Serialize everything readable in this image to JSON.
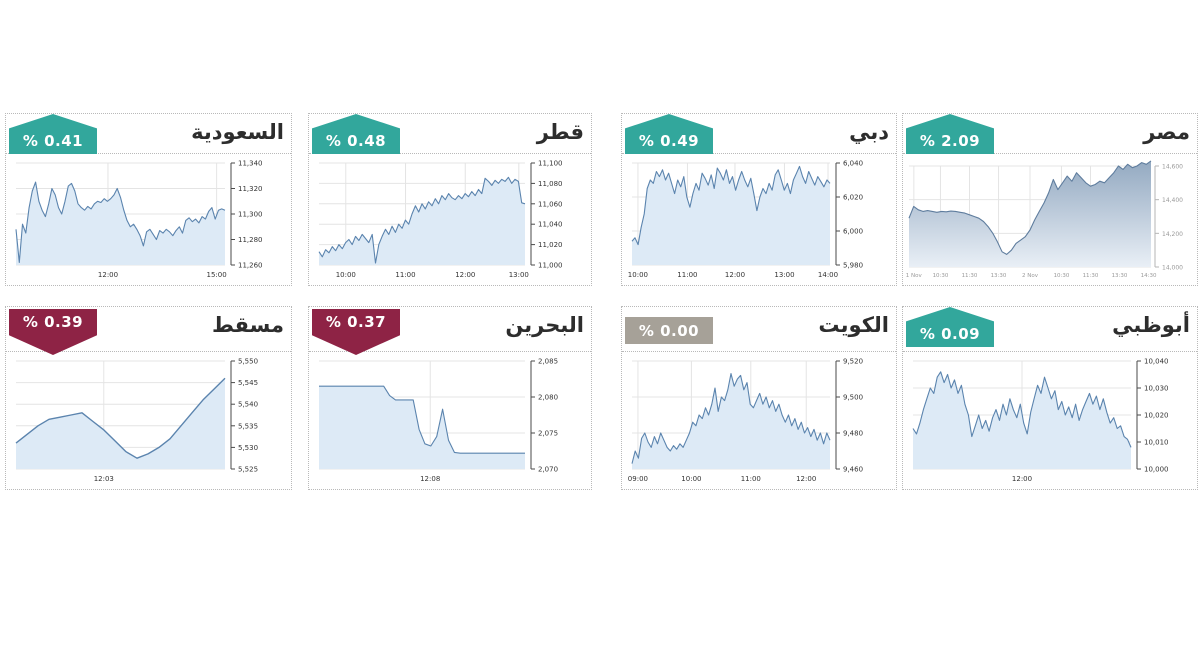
{
  "page": {
    "background": "#ffffff",
    "description_direction": "rtl"
  },
  "colors": {
    "badge": {
      "up": "#32a79c",
      "down": "#8e2345",
      "flat": "#a6a198"
    },
    "badge_text": "#ffffff",
    "title_text": "#2d2d2d",
    "line": "#5b84ae",
    "fill": "#ddeaf6",
    "line_gradient": "#5f7d9e",
    "fill_gradient_top": "#93a9c1",
    "fill_gradient_bottom": "#e9eff6",
    "grid": "#e4e4e4",
    "axis": "#4a4a4a",
    "tick_text": "#333333",
    "tick_text_gray": "#9a9a9a",
    "panel_border": "#b9b9b9"
  },
  "chart_data": [
    {
      "type": "area",
      "title": "السعودية",
      "change": "% 0.41",
      "direction": "up",
      "ylim": [
        11260,
        11340
      ],
      "y_tick_labels": [
        "11,340",
        "11,320",
        "11,300",
        "11,280",
        "11,260"
      ],
      "x_ticks": [
        {
          "label": "12:00",
          "pos": 0.44
        },
        {
          "label": "15:00",
          "pos": 0.96
        }
      ],
      "values": [
        11288,
        11262,
        11292,
        11285,
        11305,
        11318,
        11325,
        11310,
        11303,
        11298,
        11308,
        11320,
        11315,
        11305,
        11300,
        11310,
        11322,
        11324,
        11318,
        11308,
        11305,
        11303,
        11306,
        11304,
        11308,
        11310,
        11309,
        11312,
        11310,
        11312,
        11315,
        11320,
        11313,
        11303,
        11295,
        11290,
        11292,
        11288,
        11283,
        11275,
        11286,
        11288,
        11284,
        11280,
        11287,
        11285,
        11288,
        11286,
        11283,
        11287,
        11290,
        11285,
        11295,
        11297,
        11294,
        11296,
        11293,
        11298,
        11296,
        11302,
        11305,
        11296,
        11303,
        11304,
        11303
      ]
    },
    {
      "type": "area",
      "title": "قطر",
      "change": "% 0.48",
      "direction": "up",
      "ylim": [
        11000,
        11100
      ],
      "y_tick_labels": [
        "11,100",
        "11,080",
        "11,060",
        "11,040",
        "11,020",
        "11,000"
      ],
      "x_ticks": [
        {
          "label": "10:00",
          "pos": 0.13
        },
        {
          "label": "11:00",
          "pos": 0.42
        },
        {
          "label": "12:00",
          "pos": 0.71
        },
        {
          "label": "13:00",
          "pos": 0.97
        }
      ],
      "values": [
        11013,
        11008,
        11015,
        11012,
        11018,
        11014,
        11020,
        11016,
        11022,
        11025,
        11020,
        11028,
        11024,
        11030,
        11026,
        11022,
        11030,
        11002,
        11020,
        11028,
        11035,
        11030,
        11038,
        11032,
        11040,
        11036,
        11044,
        11040,
        11050,
        11058,
        11052,
        11060,
        11055,
        11062,
        11058,
        11065,
        11060,
        11068,
        11064,
        11070,
        11066,
        11064,
        11068,
        11065,
        11070,
        11067,
        11072,
        11068,
        11074,
        11070,
        11085,
        11082,
        11078,
        11083,
        11080,
        11084,
        11082,
        11086,
        11080,
        11084,
        11082,
        11061,
        11060
      ]
    },
    {
      "type": "area",
      "title": "دبي",
      "change": "% 0.49",
      "direction": "up",
      "ylim": [
        5980,
        6040
      ],
      "y_tick_labels": [
        "6,040",
        "6,020",
        "6,000",
        "5,980"
      ],
      "x_ticks": [
        {
          "label": "10:00",
          "pos": 0.03
        },
        {
          "label": "11:00",
          "pos": 0.28
        },
        {
          "label": "12:00",
          "pos": 0.52
        },
        {
          "label": "13:00",
          "pos": 0.77
        },
        {
          "label": "14:00",
          "pos": 0.99
        }
      ],
      "values": [
        5994,
        5996,
        5992,
        6002,
        6010,
        6025,
        6030,
        6028,
        6035,
        6032,
        6036,
        6030,
        6034,
        6028,
        6022,
        6030,
        6026,
        6032,
        6020,
        6014,
        6022,
        6028,
        6024,
        6034,
        6031,
        6027,
        6033,
        6025,
        6037,
        6034,
        6030,
        6036,
        6028,
        6032,
        6024,
        6030,
        6035,
        6030,
        6026,
        6031,
        6022,
        6012,
        6020,
        6025,
        6022,
        6028,
        6024,
        6033,
        6036,
        6030,
        6024,
        6028,
        6022,
        6030,
        6034,
        6038,
        6032,
        6028,
        6035,
        6031,
        6027,
        6032,
        6029,
        6026,
        6030,
        6028
      ]
    },
    {
      "type": "area",
      "title": "مصر",
      "change": "% 2.09",
      "direction": "up",
      "variant": "gradient",
      "ylim": [
        14000,
        14600
      ],
      "y_tick_labels": [
        "14,600",
        "14,400",
        "14,200",
        "14,000"
      ],
      "x_ticks": [
        {
          "label": "1 Nov",
          "pos": 0.02
        },
        {
          "label": "10:30",
          "pos": 0.13
        },
        {
          "label": "11:30",
          "pos": 0.25
        },
        {
          "label": "13:30",
          "pos": 0.37
        },
        {
          "label": "2 Nov",
          "pos": 0.5
        },
        {
          "label": "10:30",
          "pos": 0.63
        },
        {
          "label": "11:30",
          "pos": 0.75
        },
        {
          "label": "13:30",
          "pos": 0.87
        },
        {
          "label": "14:30",
          "pos": 0.99
        }
      ],
      "values": [
        14290,
        14360,
        14340,
        14330,
        14335,
        14330,
        14325,
        14330,
        14328,
        14332,
        14330,
        14325,
        14320,
        14310,
        14300,
        14290,
        14270,
        14240,
        14200,
        14150,
        14090,
        14075,
        14100,
        14140,
        14160,
        14180,
        14220,
        14280,
        14330,
        14380,
        14440,
        14520,
        14460,
        14500,
        14540,
        14510,
        14560,
        14530,
        14500,
        14480,
        14490,
        14510,
        14500,
        14530,
        14560,
        14600,
        14580,
        14610,
        14590,
        14600,
        14620,
        14610,
        14630
      ]
    },
    {
      "type": "area",
      "title": "مسقط",
      "change": "% 0.39",
      "direction": "down",
      "ylim": [
        5525,
        5550
      ],
      "y_tick_labels": [
        "5,550",
        "5,545",
        "5,540",
        "5,535",
        "5,530",
        "5,525"
      ],
      "x_ticks": [
        {
          "label": "12:03",
          "pos": 0.42
        }
      ],
      "values": [
        5531,
        5533,
        5535,
        5536.5,
        5537,
        5537.5,
        5538,
        5536,
        5534,
        5531.5,
        5529,
        5527.5,
        5528.5,
        5530,
        5532,
        5535,
        5538,
        5541,
        5543.5,
        5546
      ]
    },
    {
      "type": "area",
      "title": "البحرين",
      "change": "% 0.37",
      "direction": "down",
      "ylim": [
        2070,
        2085
      ],
      "y_tick_labels": [
        "2,085",
        "2,080",
        "2,075",
        "2,070"
      ],
      "x_ticks": [
        {
          "label": "12:08",
          "pos": 0.54
        }
      ],
      "values": [
        2081.5,
        2081.5,
        2081.5,
        2081.5,
        2081.5,
        2081.5,
        2081.5,
        2081.5,
        2081.5,
        2081.5,
        2081.5,
        2081.5,
        2080.2,
        2079.6,
        2079.6,
        2079.6,
        2079.6,
        2075.5,
        2073.5,
        2073.2,
        2074.5,
        2078.3,
        2074,
        2072.3,
        2072.2,
        2072.2,
        2072.2,
        2072.2,
        2072.2,
        2072.2,
        2072.2,
        2072.2,
        2072.2,
        2072.2,
        2072.2,
        2072.2
      ]
    },
    {
      "type": "area",
      "title": "الكويت",
      "change": "% 0.00",
      "direction": "flat",
      "ylim": [
        9460,
        9520
      ],
      "y_tick_labels": [
        "9,520",
        "9,500",
        "9,480",
        "9,460"
      ],
      "x_ticks": [
        {
          "label": "09:00",
          "pos": 0.03
        },
        {
          "label": "10:00",
          "pos": 0.3
        },
        {
          "label": "11:00",
          "pos": 0.6
        },
        {
          "label": "12:00",
          "pos": 0.88
        }
      ],
      "values": [
        9463,
        9470,
        9466,
        9477,
        9480,
        9475,
        9472,
        9478,
        9474,
        9480,
        9476,
        9472,
        9470,
        9473,
        9471,
        9474,
        9472,
        9476,
        9480,
        9486,
        9484,
        9490,
        9488,
        9494,
        9490,
        9496,
        9505,
        9492,
        9500,
        9498,
        9504,
        9513,
        9506,
        9510,
        9512,
        9504,
        9508,
        9496,
        9494,
        9498,
        9502,
        9496,
        9500,
        9494,
        9498,
        9492,
        9496,
        9490,
        9486,
        9490,
        9484,
        9488,
        9482,
        9486,
        9480,
        9483,
        9478,
        9482,
        9476,
        9480,
        9474,
        9480,
        9476
      ]
    },
    {
      "type": "area",
      "title": "أبوظبي",
      "change": "% 0.09",
      "direction": "up",
      "ylim": [
        10000,
        10040
      ],
      "y_tick_labels": [
        "10,040",
        "10,030",
        "10,020",
        "10,010",
        "10,000"
      ],
      "x_ticks": [
        {
          "label": "12:00",
          "pos": 0.5
        }
      ],
      "values": [
        10015,
        10013,
        10017,
        10022,
        10026,
        10030,
        10028,
        10034,
        10036,
        10032,
        10035,
        10030,
        10033,
        10028,
        10031,
        10024,
        10020,
        10012,
        10016,
        10020,
        10015,
        10018,
        10014,
        10019,
        10022,
        10018,
        10024,
        10020,
        10026,
        10022,
        10019,
        10024,
        10017,
        10013,
        10021,
        10026,
        10031,
        10028,
        10034,
        10030,
        10026,
        10029,
        10022,
        10025,
        10020,
        10023,
        10019,
        10024,
        10018,
        10022,
        10025,
        10028,
        10024,
        10027,
        10022,
        10026,
        10021,
        10017,
        10019,
        10015,
        10016,
        10012,
        10011,
        10008
      ]
    }
  ]
}
